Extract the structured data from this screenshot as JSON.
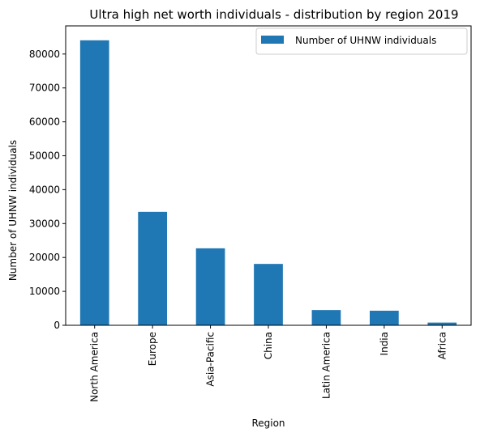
{
  "chart_data": {
    "type": "bar",
    "title": "Ultra high net worth individuals - distribution by region 2019",
    "xlabel": "Region",
    "ylabel": "Number of UHNW individuals",
    "categories": [
      "North America",
      "Europe",
      "Asia-Pacific",
      "China",
      "Latin America",
      "India",
      "Africa"
    ],
    "series": [
      {
        "name": "Number of UHNW individuals",
        "values": [
          84050,
          33450,
          22700,
          18100,
          4500,
          4300,
          800
        ]
      }
    ],
    "ylim": [
      0,
      88300
    ],
    "yticks": [
      0,
      10000,
      20000,
      30000,
      40000,
      50000,
      60000,
      70000,
      80000
    ],
    "grid": false,
    "legend_position": "upper right",
    "colors": {
      "bar": "#1f77b4",
      "axis": "#000000",
      "legend_edge": "#cccccc"
    }
  }
}
